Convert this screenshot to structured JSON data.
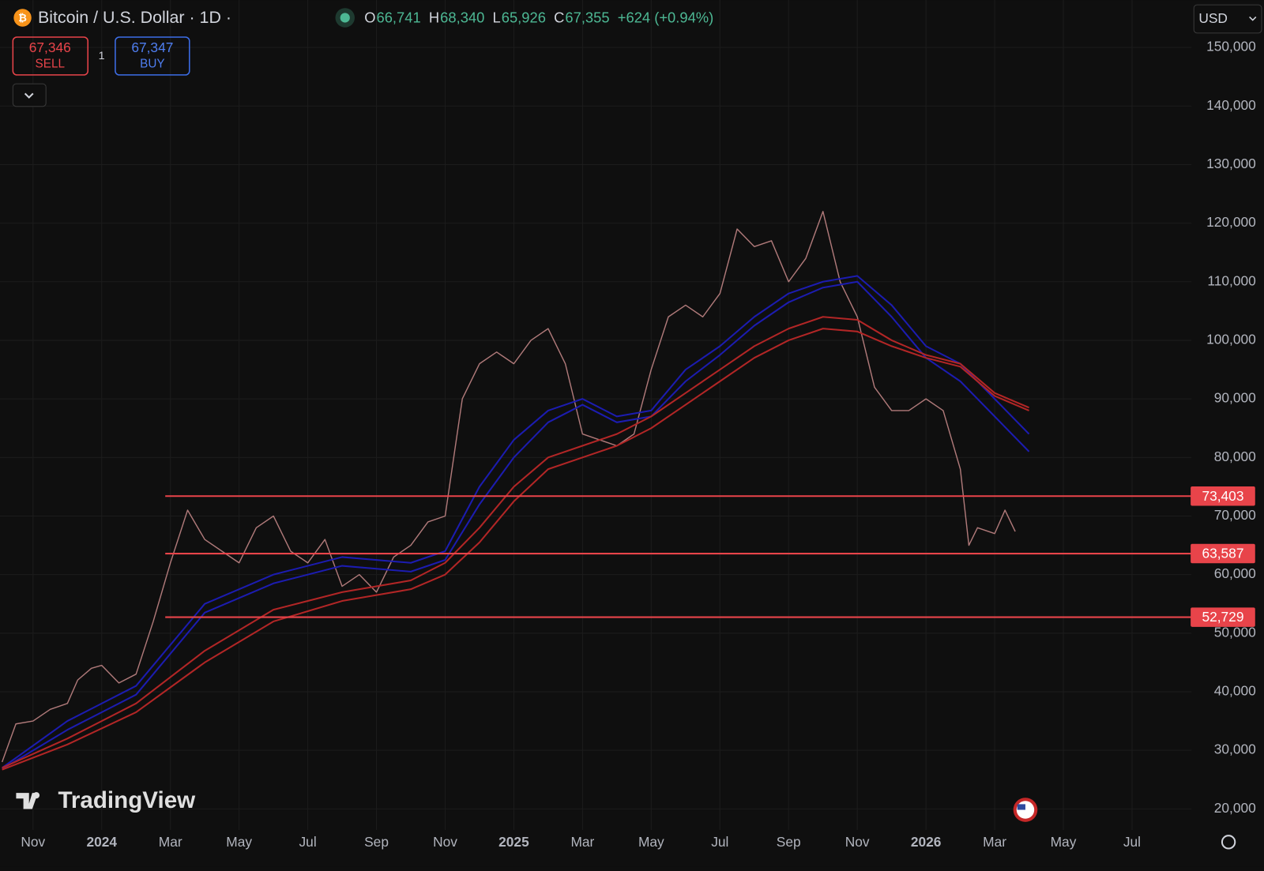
{
  "toolbar": {
    "symbol": "Bitcoin / U.S. Dollar · 1D ·",
    "ohlc": [
      {
        "key": "O",
        "text": "66,741"
      },
      {
        "key": "H",
        "text": "68,340"
      },
      {
        "key": "L",
        "text": "65,926"
      },
      {
        "key": "C",
        "text": "67,355"
      }
    ],
    "change": "+624 (+0.94%)",
    "sell": {
      "price": "67,346",
      "label": "SELL"
    },
    "quantity": "1",
    "buy": {
      "price": "67,347",
      "label": "BUY"
    },
    "currency": "USD",
    "watermark": "TradingView"
  },
  "chart_data": {
    "type": "line",
    "xlim": [
      -0.962,
      33.73
    ],
    "xticks": [
      {
        "value": 0,
        "label": "Nov"
      },
      {
        "value": 2,
        "label": "2024"
      },
      {
        "value": 4,
        "label": "Mar"
      },
      {
        "value": 6,
        "label": "May"
      },
      {
        "value": 8,
        "label": "Jul"
      },
      {
        "value": 10,
        "label": "Sep"
      },
      {
        "value": 12,
        "label": "Nov"
      },
      {
        "value": 14,
        "label": "2025"
      },
      {
        "value": 16,
        "label": "Mar"
      },
      {
        "value": 18,
        "label": "May"
      },
      {
        "value": 20,
        "label": "Jul"
      },
      {
        "value": 22,
        "label": "Sep"
      },
      {
        "value": 24,
        "label": "Nov"
      },
      {
        "value": 26,
        "label": "2026"
      },
      {
        "value": 28,
        "label": "Mar"
      },
      {
        "value": 30,
        "label": "May"
      },
      {
        "value": 32,
        "label": "Jul"
      }
    ],
    "ylim": [
      16400,
      158100
    ],
    "yticks": [
      {
        "value": 20000,
        "label": "20,000"
      },
      {
        "value": 30000,
        "label": "30,000"
      },
      {
        "value": 40000,
        "label": "40,000"
      },
      {
        "value": 50000,
        "label": "50,000"
      },
      {
        "value": 60000,
        "label": "60,000"
      },
      {
        "value": 70000,
        "label": "70,000"
      },
      {
        "value": 80000,
        "label": "80,000"
      },
      {
        "value": 90000,
        "label": "90,000"
      },
      {
        "value": 100000,
        "label": "100,000"
      },
      {
        "value": 110000,
        "label": "110,000"
      },
      {
        "value": 120000,
        "label": "120,000"
      },
      {
        "value": 130000,
        "label": "130,000"
      },
      {
        "value": 140000,
        "label": "140,000"
      },
      {
        "value": 150000,
        "label": "150,000"
      }
    ],
    "grid": true,
    "series": [
      {
        "color": "#b07a7a",
        "width": 1.4,
        "x": [
          -0.9,
          -0.5,
          0,
          0.5,
          1,
          1.3,
          1.7,
          2,
          2.5,
          3,
          3.5,
          4,
          4.5,
          5,
          5.5,
          6,
          6.5,
          7,
          7.5,
          8,
          8.5,
          9,
          9.5,
          10,
          10.5,
          11,
          11.5,
          12,
          12.5,
          13,
          13.5,
          14,
          14.5,
          15,
          15.5,
          16,
          16.5,
          17,
          17.5,
          18,
          18.5,
          19,
          19.5,
          20,
          20.5,
          21,
          21.5,
          22,
          22.5,
          23,
          23.5,
          24,
          24.5,
          25,
          25.5,
          26,
          26.5,
          27,
          27.25,
          27.5,
          28,
          28.3,
          28.6
        ],
        "values": [
          28000,
          34500,
          35000,
          37000,
          38000,
          42000,
          44000,
          44500,
          41500,
          43000,
          52000,
          62000,
          71000,
          66000,
          64000,
          62000,
          68000,
          70000,
          64000,
          62000,
          66000,
          58000,
          60000,
          57000,
          63000,
          65000,
          69000,
          70000,
          90000,
          96000,
          98000,
          96000,
          100000,
          102000,
          96000,
          84000,
          83000,
          82000,
          84000,
          95000,
          104000,
          106000,
          104000,
          108000,
          119000,
          116000,
          117000,
          110000,
          114000,
          122000,
          110000,
          104000,
          92000,
          88000,
          88000,
          90000,
          88000,
          78000,
          65000,
          68000,
          67000,
          71000,
          67355
        ]
      },
      {
        "color": "#1c1cb0",
        "width": 2,
        "x": [
          -0.9,
          1,
          3,
          5,
          7,
          9,
          11,
          12,
          13,
          14,
          15,
          16,
          17,
          18,
          19,
          20,
          21,
          22,
          23,
          24,
          25,
          26,
          27,
          28,
          29
        ],
        "values": [
          27000,
          35000,
          41000,
          55000,
          60000,
          63000,
          62000,
          64000,
          75000,
          83000,
          88000,
          90000,
          87000,
          88000,
          95000,
          99000,
          104000,
          108000,
          110000,
          111000,
          106000,
          99000,
          96000,
          90000,
          84000
        ]
      },
      {
        "color": "#1c1cb0",
        "width": 2,
        "x": [
          -0.9,
          1,
          3,
          5,
          7,
          9,
          11,
          12,
          13,
          14,
          15,
          16,
          17,
          18,
          19,
          20,
          21,
          22,
          23,
          24,
          25,
          26,
          27,
          28,
          29
        ],
        "values": [
          26800,
          33500,
          39500,
          53500,
          58500,
          61500,
          60500,
          62500,
          72000,
          80000,
          86000,
          89000,
          86000,
          87000,
          93000,
          97500,
          102500,
          106500,
          109000,
          110000,
          104000,
          97000,
          93000,
          87000,
          81000
        ]
      },
      {
        "color": "#b22626",
        "width": 2,
        "x": [
          -0.9,
          1,
          3,
          5,
          7,
          9,
          11,
          12,
          13,
          14,
          15,
          16,
          17,
          18,
          19,
          20,
          21,
          22,
          23,
          24,
          25,
          26,
          27,
          28,
          29
        ],
        "values": [
          27000,
          32000,
          38000,
          47000,
          54000,
          57000,
          59000,
          62000,
          68000,
          75000,
          80000,
          82000,
          84000,
          87000,
          91000,
          95000,
          99000,
          102000,
          104000,
          103500,
          100000,
          97500,
          96000,
          91000,
          88500
        ]
      },
      {
        "color": "#b22626",
        "width": 2,
        "x": [
          -0.9,
          1,
          3,
          5,
          7,
          9,
          11,
          12,
          13,
          14,
          15,
          16,
          17,
          18,
          19,
          20,
          21,
          22,
          23,
          24,
          25,
          26,
          27,
          28,
          29
        ],
        "values": [
          26700,
          31000,
          36500,
          45000,
          52000,
          55500,
          57500,
          60000,
          65500,
          72500,
          78000,
          80000,
          82000,
          85000,
          89000,
          93000,
          97000,
          100000,
          102000,
          101500,
          99000,
          97000,
          95500,
          90500,
          88000
        ]
      }
    ],
    "levels": [
      {
        "value": 73403,
        "label": "73,403"
      },
      {
        "value": 63587,
        "label": "63,587"
      },
      {
        "value": 52729,
        "label": "52,729"
      }
    ],
    "level_color": "#e8444a"
  }
}
